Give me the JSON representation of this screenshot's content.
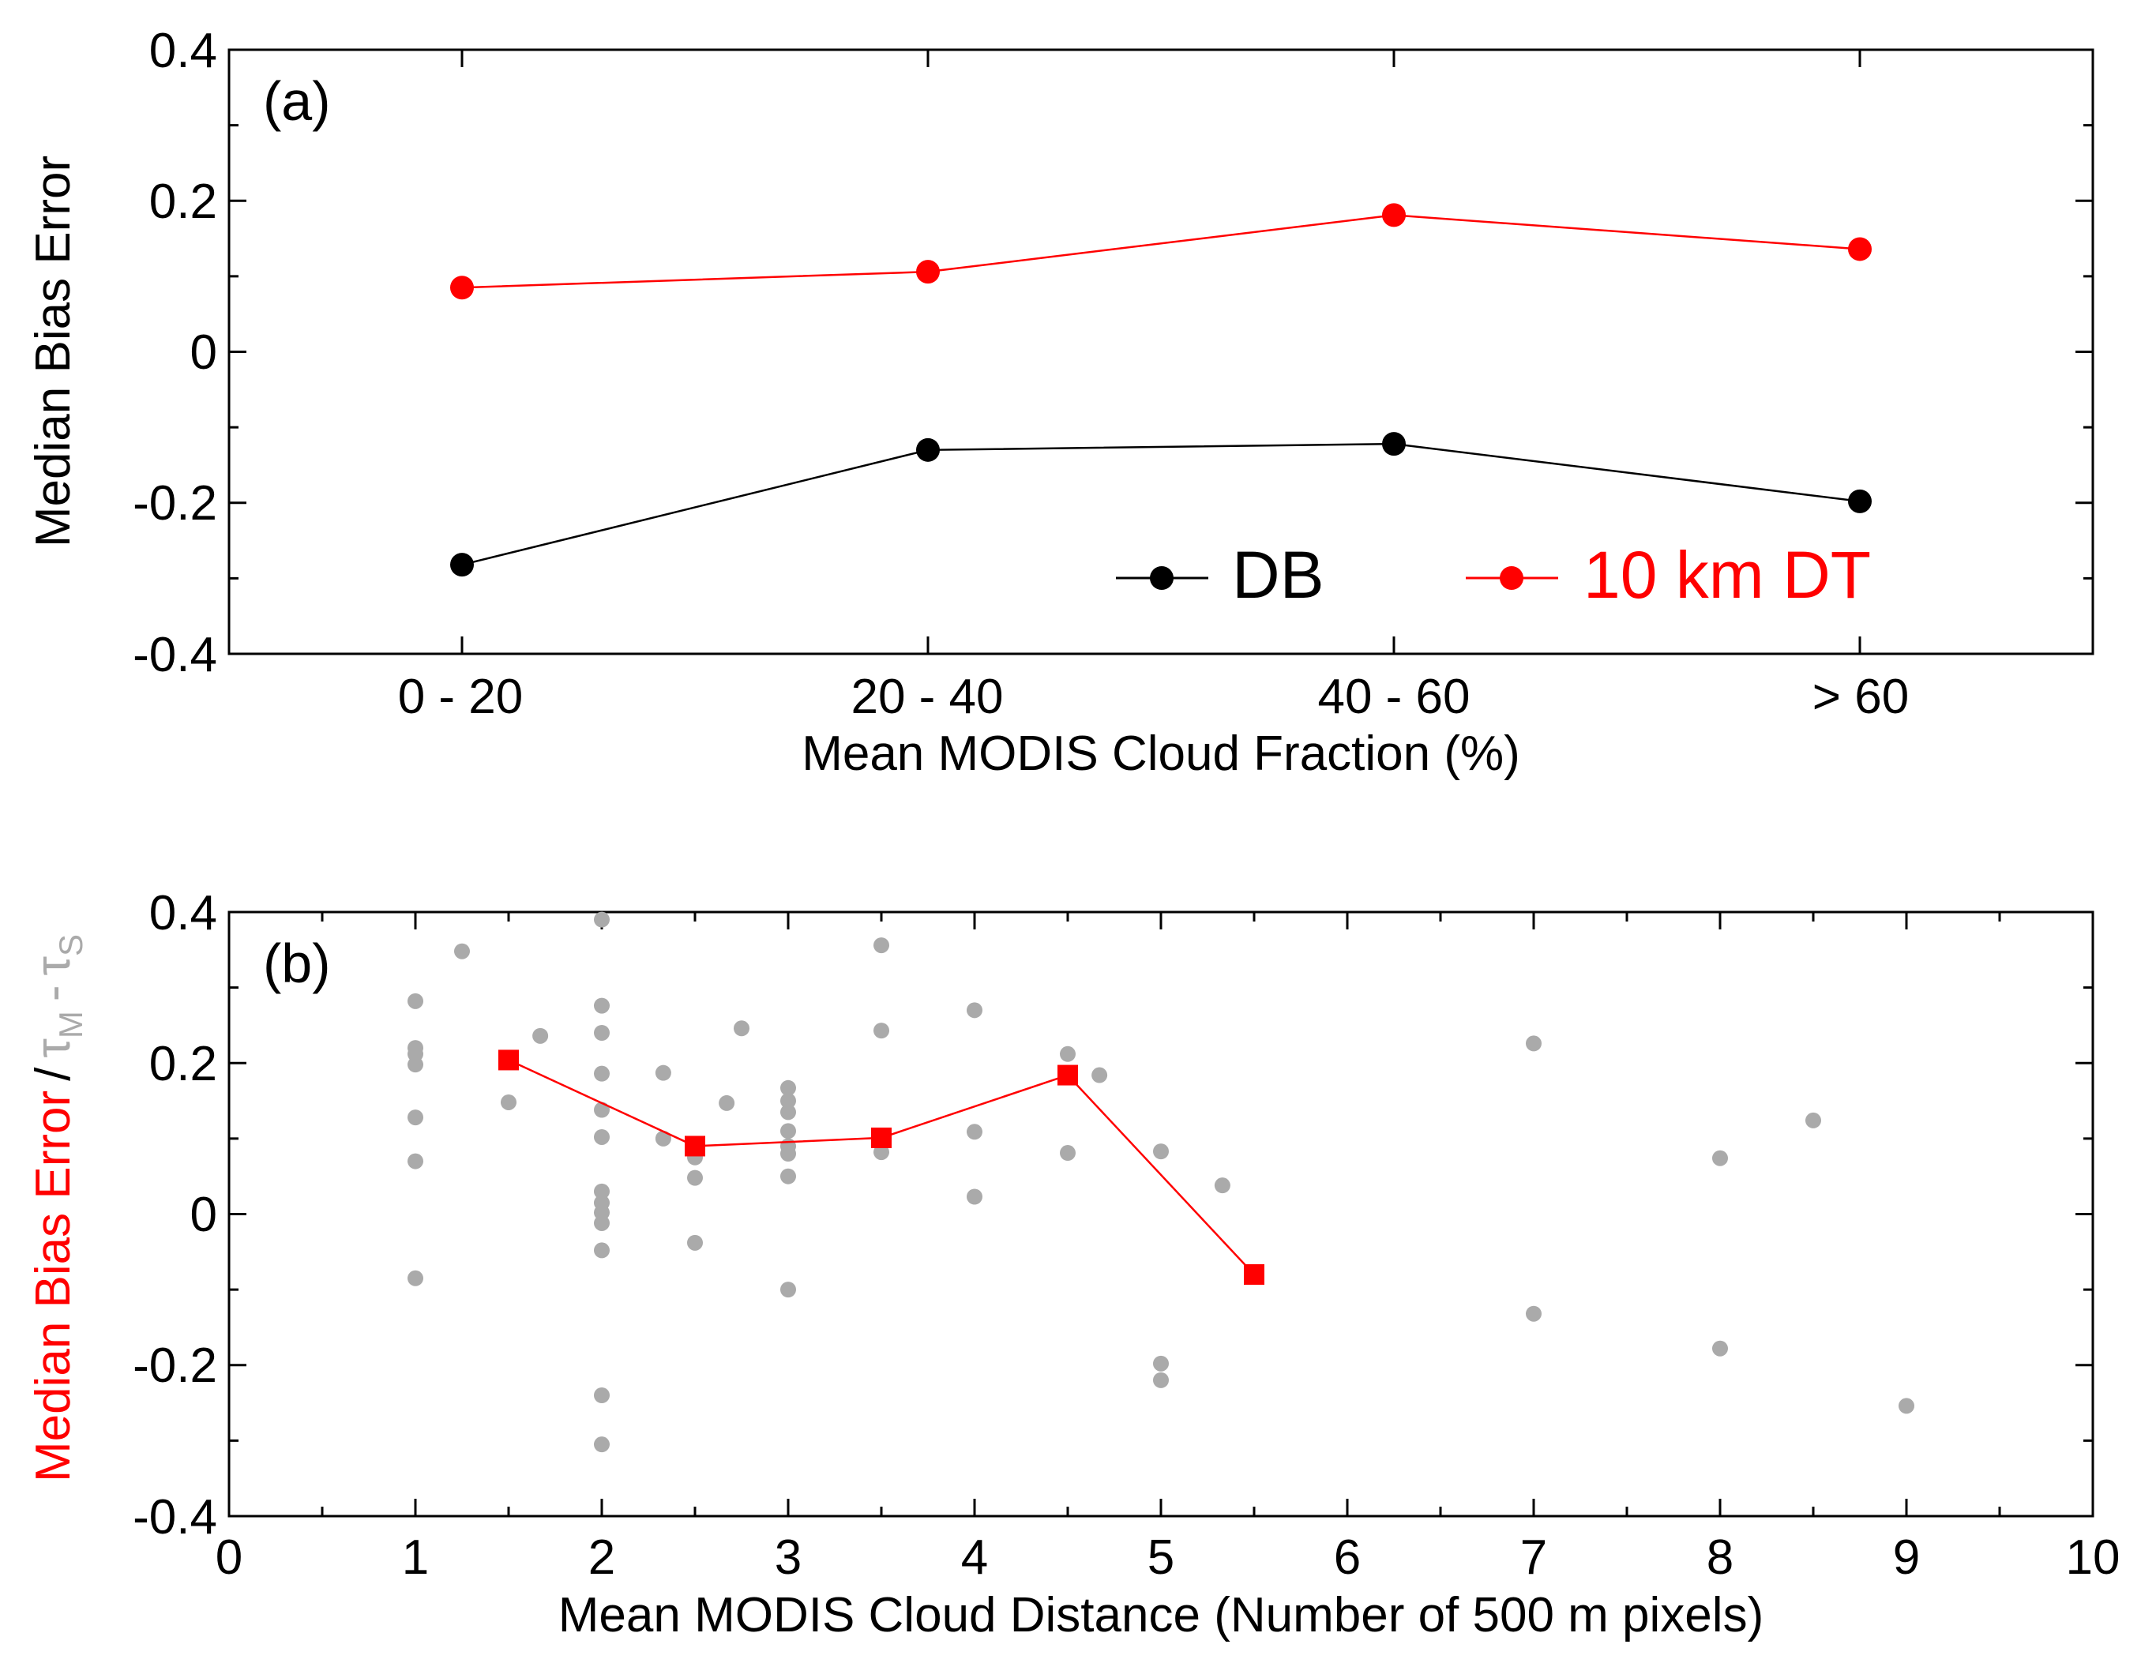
{
  "colors": {
    "black": "#000000",
    "red": "#ff0000",
    "gray": "#aaaaaa"
  },
  "chart_data": [
    {
      "panel_label": "(a)",
      "type": "line",
      "categories": [
        "0 - 20",
        "20 - 40",
        "40 - 60",
        "> 60"
      ],
      "series": [
        {
          "name": "DB",
          "color": "#000000",
          "marker": "circle",
          "values": [
            -0.282,
            -0.13,
            -0.122,
            -0.198
          ]
        },
        {
          "name": "10 km DT",
          "color": "#ff0000",
          "marker": "circle",
          "values": [
            0.085,
            0.106,
            0.181,
            0.136
          ]
        }
      ],
      "xlabel": "Mean MODIS Cloud Fraction (%)",
      "ylabel": "Median Bias Error",
      "ylim": [
        -0.4,
        0.4
      ],
      "yticks": [
        "0.4",
        "0.2",
        "0",
        "-0.2",
        "-0.4"
      ],
      "legend_position": "bottom-right"
    },
    {
      "panel_label": "(b)",
      "type": "scatter",
      "xlabel": "Mean MODIS Cloud Distance (Number of 500 m pixels)",
      "ylabel_parts": {
        "red": "Median Bias Error",
        "slash": "/",
        "tau_m": "τ",
        "tau_m_sub": "M",
        "minus": "-",
        "tau_s": "τ",
        "tau_s_sub": "S"
      },
      "xlim": [
        0,
        10
      ],
      "ylim": [
        -0.4,
        0.4
      ],
      "xticks": [
        "0",
        "1",
        "2",
        "3",
        "4",
        "5",
        "6",
        "7",
        "8",
        "9",
        "10"
      ],
      "yticks": [
        "0.4",
        "0.2",
        "0",
        "-0.2",
        "-0.4"
      ],
      "series": [
        {
          "name": "τM - τS",
          "color": "#aaaaaa",
          "marker": "circle",
          "points": [
            [
              1,
              0.282
            ],
            [
              1,
              0.22
            ],
            [
              1,
              0.212
            ],
            [
              1,
              0.198
            ],
            [
              1,
              0.128
            ],
            [
              1,
              0.07
            ],
            [
              1,
              -0.085
            ],
            [
              1.25,
              0.348
            ],
            [
              1.5,
              0.148
            ],
            [
              1.67,
              0.236
            ],
            [
              2,
              0.39
            ],
            [
              2,
              0.276
            ],
            [
              2,
              0.24
            ],
            [
              2,
              0.186
            ],
            [
              2,
              0.138
            ],
            [
              2,
              0.102
            ],
            [
              2,
              0.03
            ],
            [
              2,
              0.015
            ],
            [
              2,
              0.002
            ],
            [
              2,
              -0.012
            ],
            [
              2,
              -0.048
            ],
            [
              2,
              -0.24
            ],
            [
              2,
              -0.305
            ],
            [
              2.33,
              0.187
            ],
            [
              2.33,
              0.1
            ],
            [
              2.5,
              0.075
            ],
            [
              2.5,
              0.048
            ],
            [
              2.5,
              -0.038
            ],
            [
              2.67,
              0.147
            ],
            [
              2.75,
              0.246
            ],
            [
              3,
              0.167
            ],
            [
              3,
              0.15
            ],
            [
              3,
              0.135
            ],
            [
              3,
              0.11
            ],
            [
              3,
              0.09
            ],
            [
              3,
              0.08
            ],
            [
              3,
              0.05
            ],
            [
              3,
              -0.1
            ],
            [
              3.5,
              0.356
            ],
            [
              3.5,
              0.243
            ],
            [
              3.5,
              0.082
            ],
            [
              4,
              0.27
            ],
            [
              4,
              0.109
            ],
            [
              4,
              0.023
            ],
            [
              4.5,
              0.212
            ],
            [
              4.5,
              0.081
            ],
            [
              4.67,
              0.184
            ],
            [
              5,
              0.083
            ],
            [
              5,
              -0.198
            ],
            [
              5,
              -0.22
            ],
            [
              5.33,
              0.038
            ],
            [
              7,
              0.226
            ],
            [
              7,
              -0.132
            ],
            [
              8,
              0.074
            ],
            [
              8,
              -0.178
            ],
            [
              8.5,
              0.124
            ],
            [
              9,
              -0.254
            ]
          ]
        },
        {
          "name": "Median Bias Error",
          "color": "#ff0000",
          "marker": "square",
          "points": [
            [
              1.5,
              0.204
            ],
            [
              2.5,
              0.09
            ],
            [
              3.5,
              0.101
            ],
            [
              4.5,
              0.184
            ],
            [
              5.5,
              -0.08
            ]
          ]
        }
      ]
    }
  ]
}
